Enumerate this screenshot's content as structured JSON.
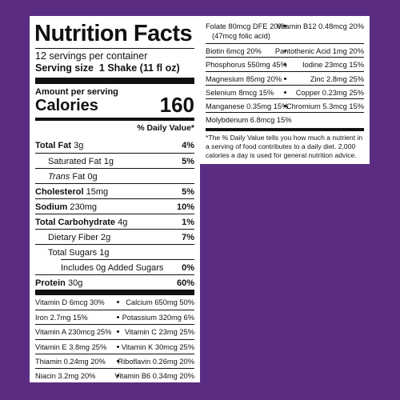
{
  "header": {
    "title": "Nutrition Facts",
    "servings": "12 servings per container",
    "serving_size_label": "Serving size",
    "serving_size": "1 Shake (11 fl oz)",
    "amount_per_serving": "Amount per serving",
    "calories_label": "Calories",
    "calories": "160",
    "daily_value_header": "% Daily Value*"
  },
  "nutrients": [
    {
      "name": "Total Fat",
      "amount": "3g",
      "dv": "4%"
    },
    {
      "name": "Saturated Fat",
      "amount": "1g",
      "dv": "5%"
    },
    {
      "name": "Trans",
      "amount": "Fat 0g"
    },
    {
      "name": "Cholesterol",
      "amount": "15mg",
      "dv": "5%"
    },
    {
      "name": "Sodium",
      "amount": "230mg",
      "dv": "10%"
    },
    {
      "name": "Total Carbohydrate",
      "amount": "4g",
      "dv": "1%"
    },
    {
      "name": "Dietary Fiber",
      "amount": "2g",
      "dv": "7%"
    },
    {
      "name": "Total Sugars",
      "amount": "1g"
    },
    {
      "name": "Includes 0g Added Sugars",
      "dv": "0%"
    },
    {
      "name": "Protein",
      "amount": "30g",
      "dv": "60%"
    }
  ],
  "micronutrients_left": [
    [
      "Vitamin D 6mcg 30%",
      "Calcium 650mg 50%"
    ],
    [
      "Iron 2.7mg 15%",
      "Potassium 320mg 6%"
    ],
    [
      "Vitamin A 230mcg 25%",
      "Vitamin C 23mg 25%"
    ],
    [
      "Vitamin E 3.8mg 25%",
      "Vitamin K 30mcg 25%"
    ],
    [
      "Thiamin 0.24mg 20%",
      "Riboflavin 0.26mg 20%"
    ],
    [
      "Niacin 3.2mg 20%",
      "Vitamin B6 0.34mg 20%"
    ]
  ],
  "micronutrients_right": [
    [
      "Folate 80mcg DFE 20%",
      "Vitamin B12 0.48mcg 20%"
    ],
    [
      "Biotin 6mcg 20%",
      "Pantothenic Acid 1mg 20%"
    ],
    [
      "Phosphorus 550mg 45%",
      "Iodine 23mcg 15%"
    ],
    [
      "Magnesium 85mg 20%",
      "Zinc 2.8mg 25%"
    ],
    [
      "Selenium 8mcg 15%",
      "Copper 0.23mg 25%"
    ],
    [
      "Manganese 0.35mg 15%",
      "Chromium 5.3mcg 15%"
    ],
    [
      "Molybdenum 6.8mcg 15%"
    ]
  ],
  "folate_note": "(47mcg folic acid)",
  "footnote": "*The % Daily Value tells you how much a nutrient in a serving of food contributes to a daily diet. 2,000 calories a day is used for general nutrition advice."
}
